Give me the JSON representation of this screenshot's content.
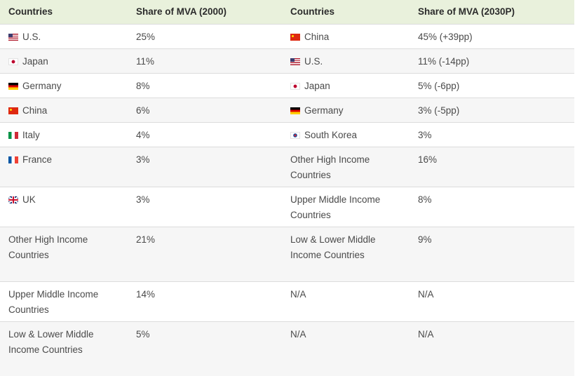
{
  "headers": {
    "countries_2000": "Countries",
    "share_2000": "Share of MVA (2000)",
    "countries_2030": "Countries",
    "share_2030": "Share of MVA (2030P)"
  },
  "rows": [
    {
      "c1": "U.S.",
      "f1": "us",
      "v1": "25%",
      "c2": "China",
      "f2": "cn",
      "v2": "45% (+39pp)"
    },
    {
      "c1": "Japan",
      "f1": "jp",
      "v1": "11%",
      "c2": "U.S.",
      "f2": "us",
      "v2": "11% (-14pp)"
    },
    {
      "c1": "Germany",
      "f1": "de",
      "v1": "8%",
      "c2": "Japan",
      "f2": "jp",
      "v2": "5% (-6pp)"
    },
    {
      "c1": "China",
      "f1": "cn",
      "v1": "6%",
      "c2": "Germany",
      "f2": "de",
      "v2": "3% (-5pp)"
    },
    {
      "c1": "Italy",
      "f1": "it",
      "v1": "4%",
      "c2": "South Korea",
      "f2": "kr",
      "v2": "3%"
    },
    {
      "c1": "France",
      "f1": "fr",
      "v1": "3%",
      "c2": "Other High Income Countries",
      "f2": "",
      "v2": "16%"
    },
    {
      "c1": "UK",
      "f1": "uk",
      "v1": "3%",
      "c2": "Upper Middle Income Countries",
      "f2": "",
      "v2": "8%"
    },
    {
      "c1": "Other High Income Countries",
      "f1": "",
      "v1": "21%",
      "c2": "Low & Lower Middle Income Countries",
      "f2": "",
      "v2": "9%"
    },
    {
      "c1": "Upper Middle Income Countries",
      "f1": "",
      "v1": "14%",
      "c2": "N/A",
      "f2": "",
      "v2": "N/A"
    },
    {
      "c1": "Low & Lower Middle Income Countries",
      "f1": "",
      "v1": "5%",
      "c2": "N/A",
      "f2": "",
      "v2": "N/A"
    }
  ]
}
